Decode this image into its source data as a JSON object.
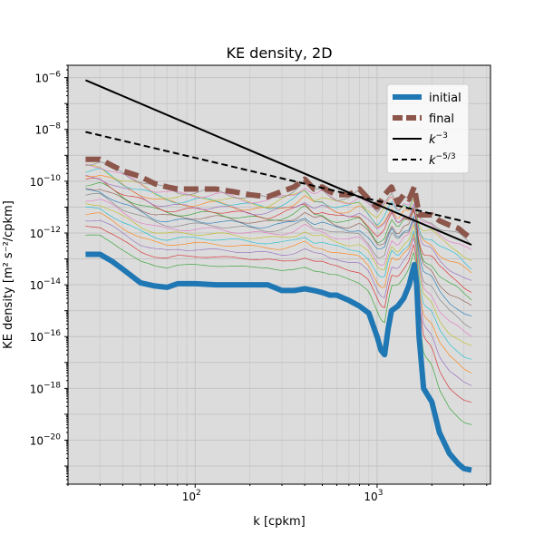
{
  "chart_data": {
    "type": "line",
    "title": "KE density, 2D",
    "xlabel": "k [cpkm]",
    "ylabel": "KE density [m² s⁻²/cpkm]",
    "xscale": "log",
    "yscale": "log",
    "xlim": [
      20,
      4200
    ],
    "ylim": [
      2e-22,
      3e-06
    ],
    "grid": true,
    "legend_position": "top-right",
    "background_color": "#dcdcdc",
    "x_ticks": [
      {
        "value": 100,
        "base": "10",
        "exp": "2"
      },
      {
        "value": 1000,
        "base": "10",
        "exp": "3"
      }
    ],
    "y_ticks": [
      {
        "value": 1e-06,
        "base": "10",
        "exp": "−6"
      },
      {
        "value": 1e-08,
        "base": "10",
        "exp": "−8"
      },
      {
        "value": 1e-10,
        "base": "10",
        "exp": "−10"
      },
      {
        "value": 1e-12,
        "base": "10",
        "exp": "−12"
      },
      {
        "value": 1e-14,
        "base": "10",
        "exp": "−14"
      },
      {
        "value": 1e-16,
        "base": "10",
        "exp": "−16"
      },
      {
        "value": 1e-18,
        "base": "10",
        "exp": "−18"
      },
      {
        "value": 1e-20,
        "base": "10",
        "exp": "−20"
      }
    ],
    "legend": [
      {
        "label": "initial",
        "color": "#1f77b4",
        "style": "thick-solid"
      },
      {
        "label": "final",
        "color": "#8c564b",
        "style": "thick-dashed"
      },
      {
        "label": "k",
        "sup": "−3",
        "color": "#000000",
        "style": "solid"
      },
      {
        "label": "k",
        "sup": "−5/3",
        "color": "#000000",
        "style": "dashed"
      }
    ],
    "series": [
      {
        "name": "initial",
        "color": "#1f77b4",
        "x": [
          25,
          30,
          35,
          40,
          50,
          60,
          70,
          80,
          100,
          130,
          160,
          200,
          250,
          300,
          350,
          400,
          450,
          500,
          550,
          600,
          700,
          800,
          900,
          1000,
          1050,
          1100,
          1150,
          1200,
          1300,
          1400,
          1500,
          1600,
          1650,
          1700,
          1800,
          2000,
          2200,
          2500,
          2800,
          3000,
          3300
        ],
        "y": [
          1.5e-13,
          1.5e-13,
          8e-14,
          4e-14,
          1.2e-14,
          9e-15,
          8e-15,
          1.1e-14,
          1.1e-14,
          1e-14,
          1e-14,
          1e-14,
          1e-14,
          6e-15,
          6e-15,
          7e-15,
          6e-15,
          5e-15,
          4e-15,
          4e-15,
          2.5e-15,
          1.5e-15,
          8e-16,
          1e-16,
          3e-17,
          2e-17,
          2e-16,
          1e-15,
          1.5e-15,
          3e-15,
          1e-14,
          6e-14,
          1e-14,
          1e-16,
          1e-18,
          3e-19,
          2e-20,
          3e-21,
          1.2e-21,
          8e-22,
          7e-22
        ]
      },
      {
        "name": "final",
        "color": "#8c564b",
        "x": [
          25,
          30,
          35,
          40,
          50,
          60,
          70,
          80,
          100,
          130,
          160,
          200,
          250,
          300,
          350,
          400,
          450,
          500,
          550,
          600,
          700,
          800,
          900,
          1000,
          1100,
          1200,
          1300,
          1400,
          1500,
          1600,
          1700,
          1800,
          2000,
          2200,
          2500,
          2800,
          3000,
          3300
        ],
        "y": [
          7e-10,
          7e-10,
          4e-10,
          2.5e-10,
          1.5e-10,
          8e-11,
          6e-11,
          5e-11,
          5e-11,
          5e-11,
          4e-11,
          3e-11,
          2.5e-11,
          4e-11,
          6e-11,
          1.2e-10,
          5e-11,
          6e-11,
          4e-11,
          3e-11,
          3e-11,
          5e-11,
          2e-11,
          1e-11,
          3e-11,
          6e-11,
          1.5e-11,
          3e-11,
          2e-11,
          6e-11,
          5e-12,
          5e-12,
          5e-12,
          3e-12,
          2e-12,
          1.5e-12,
          1e-12,
          6e-13
        ]
      },
      {
        "name": "k",
        "color": "#000000",
        "x": [
          25,
          3300
        ],
        "y": [
          8e-07,
          3.5e-13
        ]
      },
      {
        "name": "k",
        "color": "#000000",
        "x": [
          25,
          3300
        ],
        "y": [
          8e-09,
          2.4e-12
        ]
      }
    ]
  }
}
